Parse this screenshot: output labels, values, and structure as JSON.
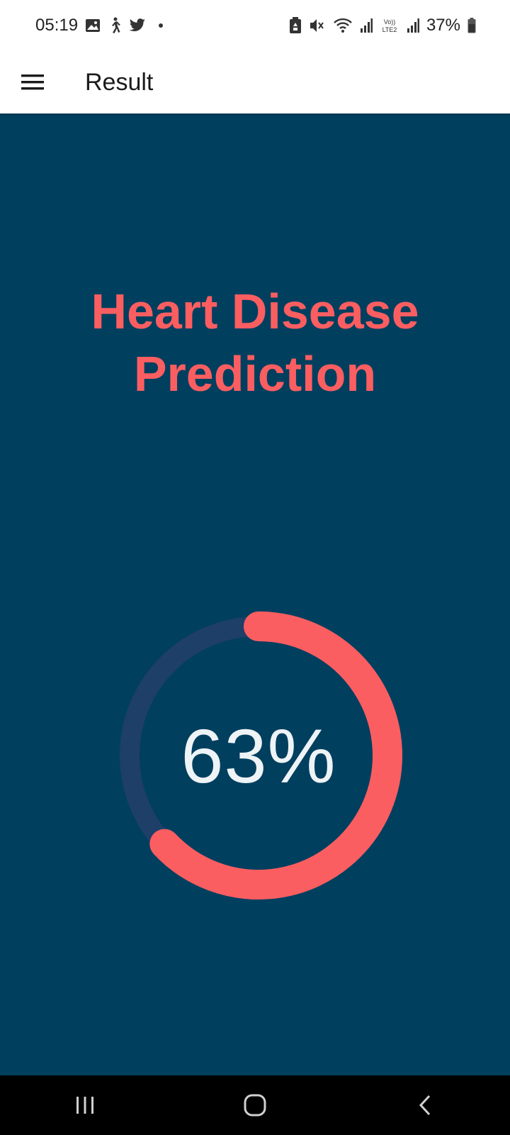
{
  "status_bar": {
    "time": "05:19",
    "battery_percent": "37%",
    "left_icons": [
      "gallery-icon",
      "walking-icon",
      "twitter-icon",
      "notification-dot"
    ],
    "right_icons": [
      "battery-saver-icon",
      "mute-icon",
      "wifi-icon",
      "signal-icon",
      "volte-icon",
      "signal-icon-2",
      "battery-icon"
    ],
    "volte_label": "Vo)) LTE2"
  },
  "app_bar": {
    "title": "Result",
    "menu_icon": "hamburger-menu-icon"
  },
  "main": {
    "heading_line1": "Heart Disease",
    "heading_line2": "Prediction",
    "prediction_text": "63%",
    "prediction_fraction": 0.63
  },
  "colors": {
    "background": "#013f5f",
    "accent": "#fb5e60",
    "track": "#1e3f68",
    "value_text": "#eef3f6"
  },
  "nav_bar": {
    "icons": [
      "recent-apps-icon",
      "home-icon",
      "back-icon"
    ]
  }
}
